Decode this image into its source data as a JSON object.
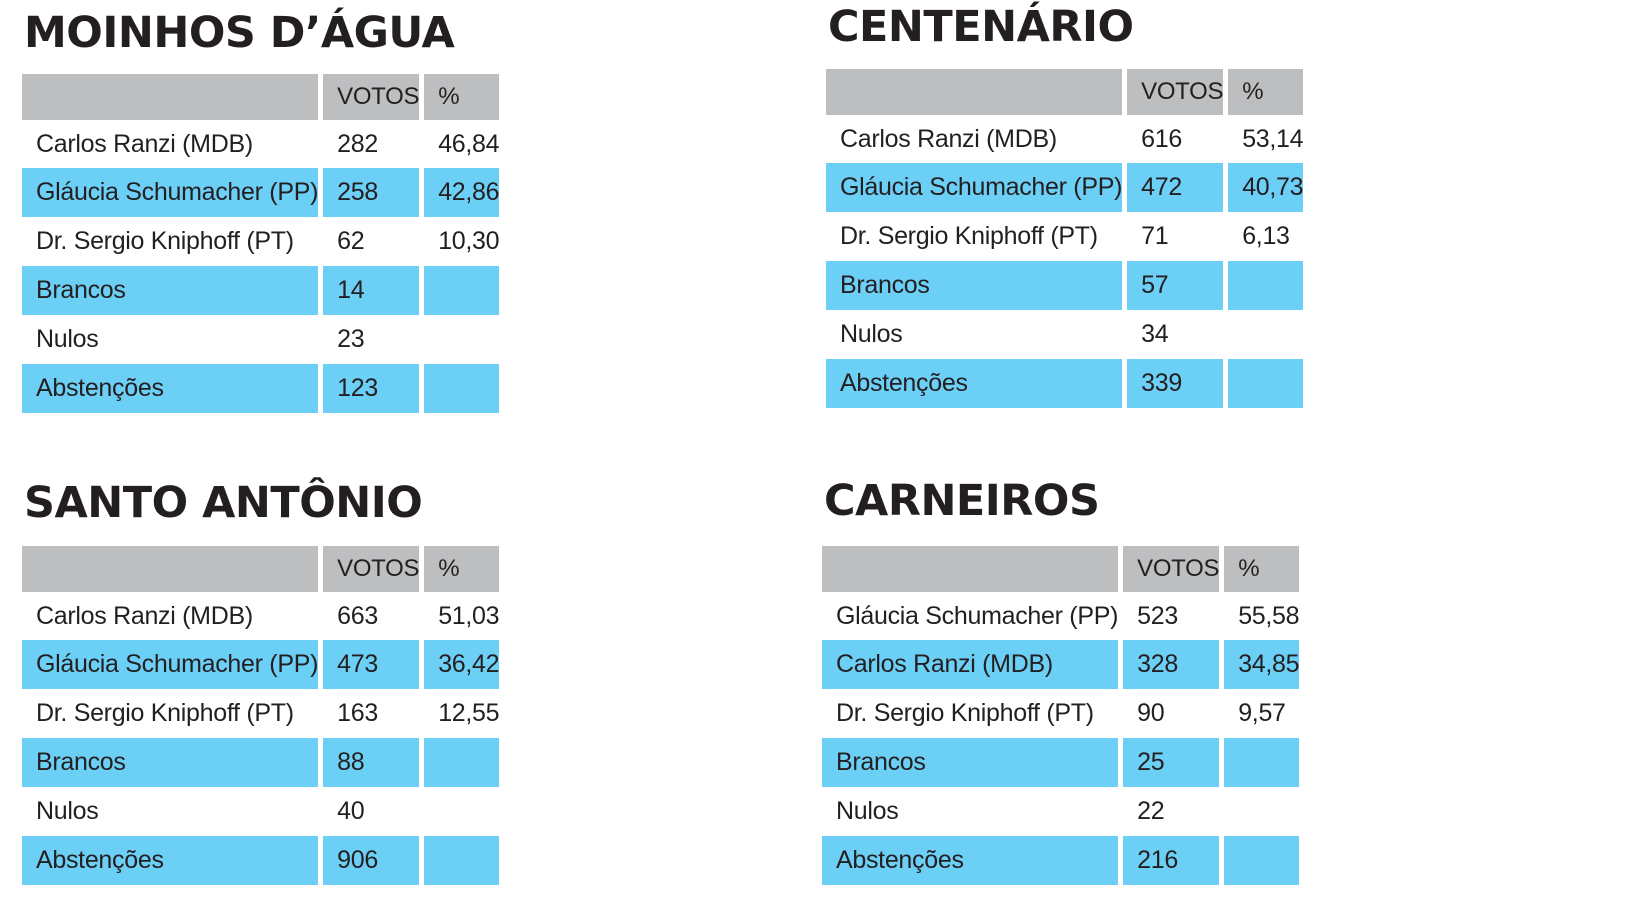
{
  "headers": {
    "votes": "VOTOS",
    "percent": "%"
  },
  "panels": [
    {
      "title": "MOINHOS D’ÁGUA",
      "rows": [
        {
          "label": "Carlos Ranzi (MDB)",
          "votes": "282",
          "percent": "46,84"
        },
        {
          "label": "Gláucia Schumacher (PP)",
          "votes": "258",
          "percent": "42,86"
        },
        {
          "label": "Dr. Sergio Kniphoff (PT)",
          "votes": "62",
          "percent": "10,30"
        },
        {
          "label": "Brancos",
          "votes": "14",
          "percent": ""
        },
        {
          "label": "Nulos",
          "votes": "23",
          "percent": ""
        },
        {
          "label": "Abstenções",
          "votes": "123",
          "percent": ""
        }
      ]
    },
    {
      "title": "CENTENÁRIO",
      "rows": [
        {
          "label": "Carlos Ranzi (MDB)",
          "votes": "616",
          "percent": "53,14"
        },
        {
          "label": "Gláucia Schumacher (PP)",
          "votes": "472",
          "percent": "40,73"
        },
        {
          "label": "Dr. Sergio Kniphoff (PT)",
          "votes": "71",
          "percent": "6,13"
        },
        {
          "label": "Brancos",
          "votes": "57",
          "percent": ""
        },
        {
          "label": "Nulos",
          "votes": "34",
          "percent": ""
        },
        {
          "label": "Abstenções",
          "votes": "339",
          "percent": ""
        }
      ]
    },
    {
      "title": "SANTO ANTÔNIO",
      "rows": [
        {
          "label": "Carlos Ranzi (MDB)",
          "votes": "663",
          "percent": "51,03"
        },
        {
          "label": "Gláucia Schumacher (PP)",
          "votes": "473",
          "percent": "36,42"
        },
        {
          "label": "Dr. Sergio Kniphoff (PT)",
          "votes": "163",
          "percent": "12,55"
        },
        {
          "label": "Brancos",
          "votes": "88",
          "percent": ""
        },
        {
          "label": "Nulos",
          "votes": "40",
          "percent": ""
        },
        {
          "label": "Abstenções",
          "votes": "906",
          "percent": ""
        }
      ]
    },
    {
      "title": "CARNEIROS",
      "rows": [
        {
          "label": "Gláucia Schumacher (PP)",
          "votes": "523",
          "percent": "55,58"
        },
        {
          "label": "Carlos Ranzi (MDB)",
          "votes": "328",
          "percent": "34,85"
        },
        {
          "label": "Dr. Sergio Kniphoff (PT)",
          "votes": "90",
          "percent": "9,57"
        },
        {
          "label": "Brancos",
          "votes": "25",
          "percent": ""
        },
        {
          "label": "Nulos",
          "votes": "22",
          "percent": ""
        },
        {
          "label": "Abstenções",
          "votes": "216",
          "percent": ""
        }
      ]
    }
  ]
}
